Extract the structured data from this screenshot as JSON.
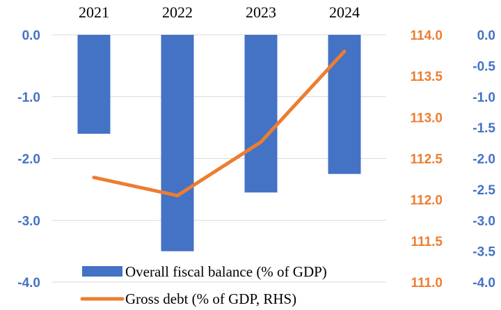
{
  "chart_data": {
    "type": "bar",
    "categories": [
      "2021",
      "2022",
      "2023",
      "2024"
    ],
    "series": [
      {
        "name": "Overall fiscal balance (% of GDP)",
        "type": "bar",
        "axis": "left",
        "color": "#4472C4",
        "values": [
          -1.6,
          -3.5,
          -2.55,
          -2.25
        ]
      },
      {
        "name": "Gross debt (% of GDP, RHS)",
        "type": "line",
        "axis": "right",
        "color": "#ED7D31",
        "values": [
          112.27,
          112.05,
          112.7,
          113.8
        ]
      }
    ],
    "ylim_left": [
      -4.0,
      0.0
    ],
    "yticks_left": [
      "0.0",
      "-1.0",
      "-2.0",
      "-3.0",
      "-4.0"
    ],
    "ylim_right": [
      111.0,
      114.0
    ],
    "yticks_right": [
      "114.0",
      "113.5",
      "113.0",
      "112.5",
      "112.0",
      "111.5",
      "111.0"
    ],
    "yticks_right_outer": [
      "0.0",
      "-0.5",
      "-1.0",
      "-1.5",
      "-2.0",
      "-2.5",
      "-3.0",
      "-3.5",
      "-4.0"
    ],
    "grid": true,
    "legend_position": "bottom"
  }
}
